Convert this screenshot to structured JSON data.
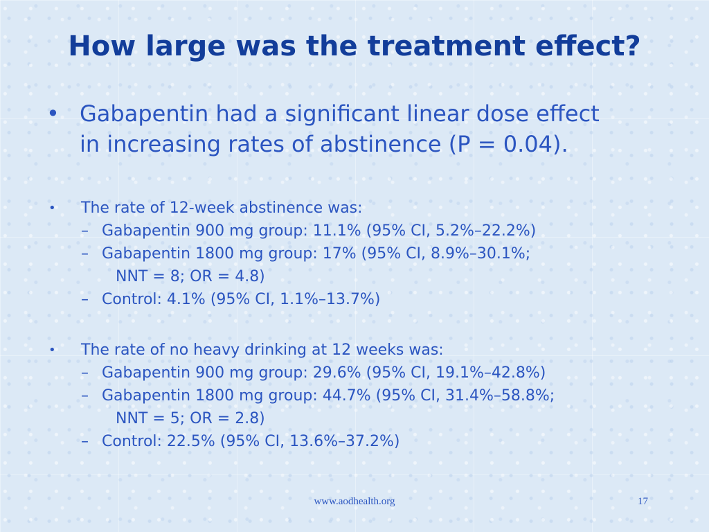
{
  "slide": {
    "title": "How large was the treatment effect?",
    "bullet_symbol": "•",
    "dash_symbol": "–",
    "main_bullet": {
      "line1": "Gabapentin had a significant linear dose effect",
      "line2": "in increasing rates of abstinence (P = 0.04)."
    },
    "abstinence": {
      "heading": "The rate of 12-week abstinence was:",
      "item1": "Gabapentin 900 mg group: 11.1% (95% CI, 5.2%–22.2%)",
      "item2_line1": "Gabapentin 1800 mg group: 17% (95% CI, 8.9%–30.1%;",
      "item2_line2": "NNT = 8; OR = 4.8)",
      "item3": "Control: 4.1% (95% CI, 1.1%–13.7%)"
    },
    "no_heavy": {
      "heading": "The rate of no heavy drinking at 12 weeks was:",
      "item1": "Gabapentin 900 mg group: 29.6% (95% CI, 19.1%–42.8%)",
      "item2_line1": "Gabapentin 1800 mg group: 44.7%  (95% CI, 31.4%–58.8%;",
      "item2_line2": "NNT = 5; OR = 2.8)",
      "item3": "Control: 22.5% (95% CI, 13.6%–37.2%)"
    },
    "footer_url": "www.aodhealth.org",
    "page_number": "17"
  }
}
